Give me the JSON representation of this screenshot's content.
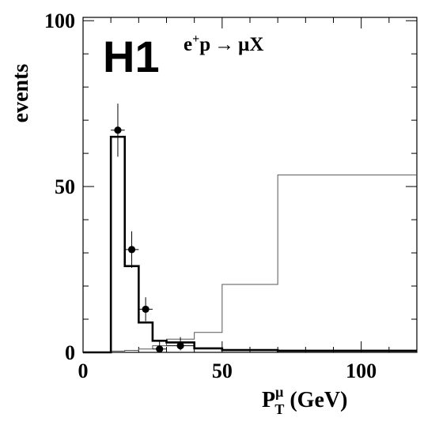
{
  "chart_data": {
    "type": "histogram",
    "experiment_logo": "H1",
    "process_label": {
      "lhs": "e",
      "lhs_sup": "+",
      "lhs_after": "p",
      "arrow": "→",
      "rhs": "μX"
    },
    "xlabel": {
      "main": "P",
      "sub": "T",
      "sup": "μ",
      "unit": " (GeV)"
    },
    "ylabel": "events",
    "xlim": [
      0,
      120
    ],
    "ylim": [
      0,
      101
    ],
    "x_ticks": [
      0,
      50,
      100
    ],
    "x_tick_labels": [
      "0",
      "50",
      "100"
    ],
    "y_ticks": [
      0,
      50,
      100
    ],
    "y_tick_labels": [
      "0",
      "50",
      "100"
    ],
    "grid": false,
    "legend": "none",
    "series": [
      {
        "style": "thick-histogram",
        "color": "#000000",
        "edges": [
          0,
          10,
          15,
          20,
          25,
          30,
          40,
          50,
          70,
          120
        ],
        "values": [
          0,
          65,
          26,
          9,
          3.5,
          3,
          1.2,
          0.7,
          0.5
        ]
      },
      {
        "style": "thin-histogram",
        "color": "#555555",
        "edges": [
          0,
          10,
          15,
          20,
          25,
          30,
          40,
          50,
          70,
          120
        ],
        "values": [
          0,
          0.4,
          0.6,
          1,
          2,
          4,
          6,
          20.5,
          53.5
        ]
      }
    ],
    "data_points": [
      {
        "x": 12.5,
        "y": 67,
        "xerr": 2.5,
        "yerr_low": 8,
        "yerr_high": 8
      },
      {
        "x": 17.5,
        "y": 31,
        "xerr": 2.5,
        "yerr_low": 5.5,
        "yerr_high": 5.5
      },
      {
        "x": 22.5,
        "y": 13,
        "xerr": 2.5,
        "yerr_low": 3.6,
        "yerr_high": 3.6
      },
      {
        "x": 27.5,
        "y": 1,
        "xerr": 2.5,
        "yerr_low": 1,
        "yerr_high": 2.3
      },
      {
        "x": 35,
        "y": 2,
        "xerr": 5,
        "yerr_low": 1.4,
        "yerr_high": 2.6
      }
    ]
  }
}
